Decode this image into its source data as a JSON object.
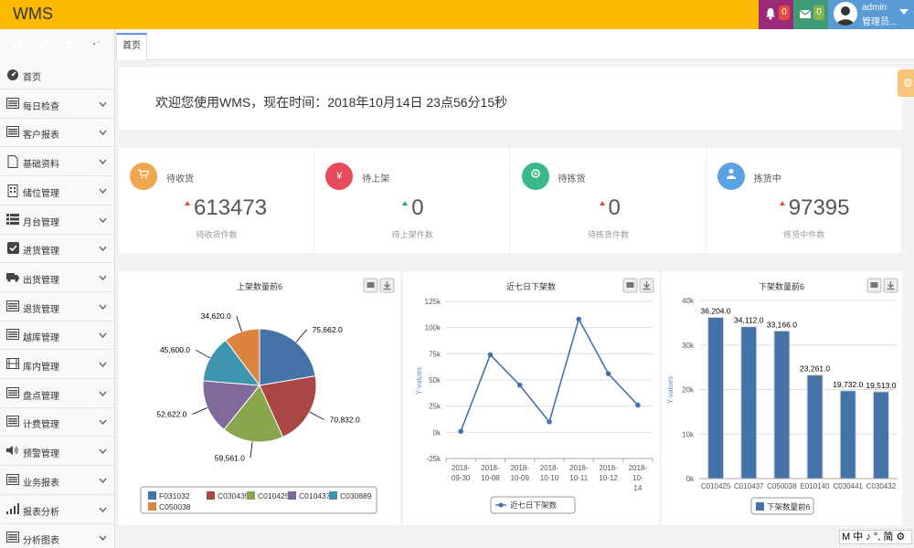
{
  "app": {
    "title": "WMS"
  },
  "topbar": {
    "bell_count": "0",
    "mail_count": "0",
    "user_name": "admin",
    "user_role": "管理员..."
  },
  "sidebar": {
    "quick_buttons": [
      {
        "icon": "signal-icon",
        "color": "#6ab04c"
      },
      {
        "icon": "pencil-icon",
        "color": "#5b9bd5"
      },
      {
        "icon": "users-icon",
        "color": "#f6a623"
      },
      {
        "icon": "cogs-icon",
        "color": "#d9534f"
      }
    ],
    "items": [
      {
        "label": "首页",
        "icon": "dashboard-icon",
        "has_children": false
      },
      {
        "label": "每日检查",
        "icon": "list-icon",
        "has_children": true
      },
      {
        "label": "客户报表",
        "icon": "list-icon",
        "has_children": true
      },
      {
        "label": "基础资料",
        "icon": "file-icon",
        "has_children": true
      },
      {
        "label": "储位管理",
        "icon": "building-icon",
        "has_children": true
      },
      {
        "label": "月台管理",
        "icon": "th-list-icon",
        "has_children": true
      },
      {
        "label": "进货管理",
        "icon": "check-square-icon",
        "has_children": true
      },
      {
        "label": "出货管理",
        "icon": "truck-icon",
        "has_children": true
      },
      {
        "label": "退货管理",
        "icon": "list-icon",
        "has_children": true
      },
      {
        "label": "越库管理",
        "icon": "list-icon",
        "has_children": true
      },
      {
        "label": "库内管理",
        "icon": "film-icon",
        "has_children": true
      },
      {
        "label": "盘点管理",
        "icon": "list-icon",
        "has_children": true
      },
      {
        "label": "计费管理",
        "icon": "list-icon",
        "has_children": true
      },
      {
        "label": "预警管理",
        "icon": "volume-icon",
        "has_children": true
      },
      {
        "label": "业务报表",
        "icon": "list-icon",
        "has_children": true
      },
      {
        "label": "报表分析",
        "icon": "signal-icon",
        "has_children": true
      },
      {
        "label": "分析图表",
        "icon": "list-icon",
        "has_children": true
      }
    ]
  },
  "tabs": [
    {
      "label": "首页"
    }
  ],
  "welcome": {
    "text": "欢迎您使用WMS，现在时间：2018年10月14日 23点56分15秒"
  },
  "stats": [
    {
      "title": "待收货",
      "value": "613473",
      "subtitle": "待收货件数",
      "color": "#f0a64c",
      "arrow_color": "#e74c3c",
      "icon": "cart-icon"
    },
    {
      "title": "待上架",
      "value": "0",
      "subtitle": "待上架件数",
      "color": "#e74c5c",
      "arrow_color": "#2aa57a",
      "icon": "yen-icon"
    },
    {
      "title": "待拣货",
      "value": "0",
      "subtitle": "待拣货件数",
      "color": "#3bb88a",
      "arrow_color": "#e74c3c",
      "icon": "target-icon"
    },
    {
      "title": "拣货中",
      "value": "97395",
      "subtitle": "拣货中件数",
      "color": "#5ba3e0",
      "arrow_color": "#e74c3c",
      "icon": "user-icon"
    }
  ],
  "ime": {
    "text": "M 中 ♪ °, 简 ⚙"
  },
  "chart_data": [
    {
      "type": "pie",
      "title": "上架数量前6",
      "categories": [
        "F031032",
        "C030435",
        "C010425",
        "C010437",
        "C030889",
        "C050038"
      ],
      "values": [
        75662.0,
        70832.0,
        59561.0,
        52622.0,
        45600.0,
        34620.0
      ],
      "labels": [
        "75,662.0",
        "70,832.0",
        "59,561.0",
        "52,622.0",
        "45,600.0",
        "34,620.0"
      ],
      "colors": [
        "#4572a7",
        "#aa4643",
        "#89a54e",
        "#80699b",
        "#3d96ae",
        "#db843d"
      ],
      "legend": "bottom"
    },
    {
      "type": "line",
      "title": "近七日下架数",
      "x": [
        "2018-09-30",
        "2018-10-08",
        "2018-10-09",
        "2018-10-10",
        "2018-10-11",
        "2018-10-12",
        "2018-10-14"
      ],
      "x_tick_lines": [
        [
          "2018-",
          "09-30"
        ],
        [
          "2018-",
          "10-08"
        ],
        [
          "2018-",
          "10-09"
        ],
        [
          "2018-",
          "10-10"
        ],
        [
          "2018-",
          "10-11"
        ],
        [
          "2018-",
          "10-12"
        ],
        [
          "2018-",
          "10-",
          "14"
        ]
      ],
      "series": [
        {
          "name": "近七日下架数",
          "values": [
            1000,
            74000,
            45000,
            10000,
            108000,
            56000,
            26000
          ],
          "color": "#4572a7"
        }
      ],
      "ylabel": "Y-values",
      "ylim": [
        -25000,
        125000
      ],
      "yticks": [
        -25000,
        0,
        25000,
        50000,
        75000,
        100000,
        125000
      ],
      "ytick_labels": [
        "-25k",
        "0k",
        "25k",
        "50k",
        "75k",
        "100k",
        "125k"
      ],
      "grid": true,
      "legend": "bottom"
    },
    {
      "type": "bar",
      "title": "下架数量前6",
      "categories": [
        "C010425",
        "C010437",
        "C050038",
        "E010140",
        "C030441",
        "C030432"
      ],
      "series": [
        {
          "name": "下架数量前6",
          "values": [
            36204.0,
            34112.0,
            33166.0,
            23261.0,
            19732.0,
            19513.0
          ],
          "color": "#4572a7"
        }
      ],
      "labels": [
        "36,204.0",
        "34,112.0",
        "33,166.0",
        "23,261.0",
        "19,732.0",
        "19,513.0"
      ],
      "ylabel": "Y-values",
      "ylim": [
        0,
        40000
      ],
      "yticks": [
        0,
        10000,
        20000,
        30000,
        40000
      ],
      "ytick_labels": [
        "0k",
        "10k",
        "20k",
        "30k",
        "40k"
      ],
      "grid": true,
      "legend": "bottom"
    }
  ]
}
